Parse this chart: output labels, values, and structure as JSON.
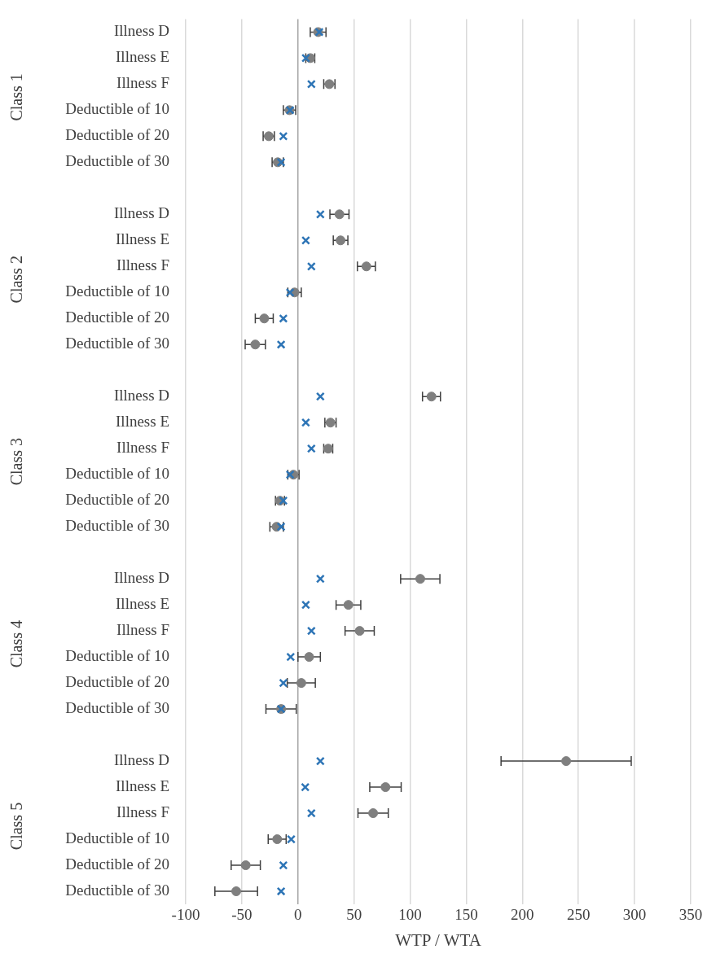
{
  "chart_data": {
    "type": "scatter",
    "orientation": "horizontal",
    "xlabel": "WTP / WTA",
    "categories": [
      "Illness D",
      "Illness E",
      "Illness F",
      "Deductible of 10",
      "Deductible of 20",
      "Deductible of 30",
      null,
      "Illness D",
      "Illness E",
      "Illness F",
      "Deductible of 10",
      "Deductible of 20",
      "Deductible of 30",
      null,
      "Illness D",
      "Illness E",
      "Illness F",
      "Deductible of 10",
      "Deductible of 20",
      "Deductible of 30",
      null,
      "Illness D",
      "Illness E",
      "Illness F",
      "Deductible of 10",
      "Deductible of 20",
      "Deductible of 30",
      null,
      "Illness D",
      "Illness E",
      "Illness F",
      "Deductible of 10",
      "Deductible of 20",
      "Deductible of 30"
    ],
    "series": [
      {
        "color": "#7f7f7f",
        "marker": "circle",
        "values": [
          18,
          11,
          28,
          -7.5,
          -26,
          -18,
          null,
          37,
          38,
          61,
          -3,
          -30,
          -38,
          null,
          119,
          29,
          27,
          -4,
          -16,
          -19,
          null,
          109,
          45,
          55,
          10,
          3,
          -15,
          null,
          239,
          78,
          67,
          -18.5,
          -46.5,
          -55
        ],
        "errors": [
          7,
          4,
          5,
          5.5,
          5,
          5,
          null,
          8.5,
          6.5,
          8,
          6,
          8,
          9,
          null,
          8,
          5,
          4,
          5,
          4,
          6,
          null,
          17.5,
          11,
          13,
          10,
          12.5,
          13.5,
          null,
          58,
          14,
          13.5,
          8,
          13,
          19
        ]
      },
      {
        "color": "#2e75b6",
        "marker": "cross",
        "values": [
          19,
          7,
          12,
          -7,
          -13,
          -15,
          null,
          20,
          7,
          12,
          -7,
          -13,
          -15,
          null,
          20,
          7,
          12,
          -7,
          -13,
          -15,
          null,
          20,
          7,
          12,
          -6.5,
          -13,
          -15,
          null,
          20,
          6.5,
          12,
          -6,
          -13,
          -15
        ]
      }
    ],
    "xlim": [
      -100,
      350
    ],
    "xticks": [
      -100,
      -50,
      0,
      50,
      100,
      150,
      200,
      250,
      300,
      350
    ],
    "grid": "x",
    "legend": false,
    "annotations": [
      "Class 1",
      "Class 2",
      "Class 3",
      "Class 4",
      "Class 5"
    ]
  }
}
